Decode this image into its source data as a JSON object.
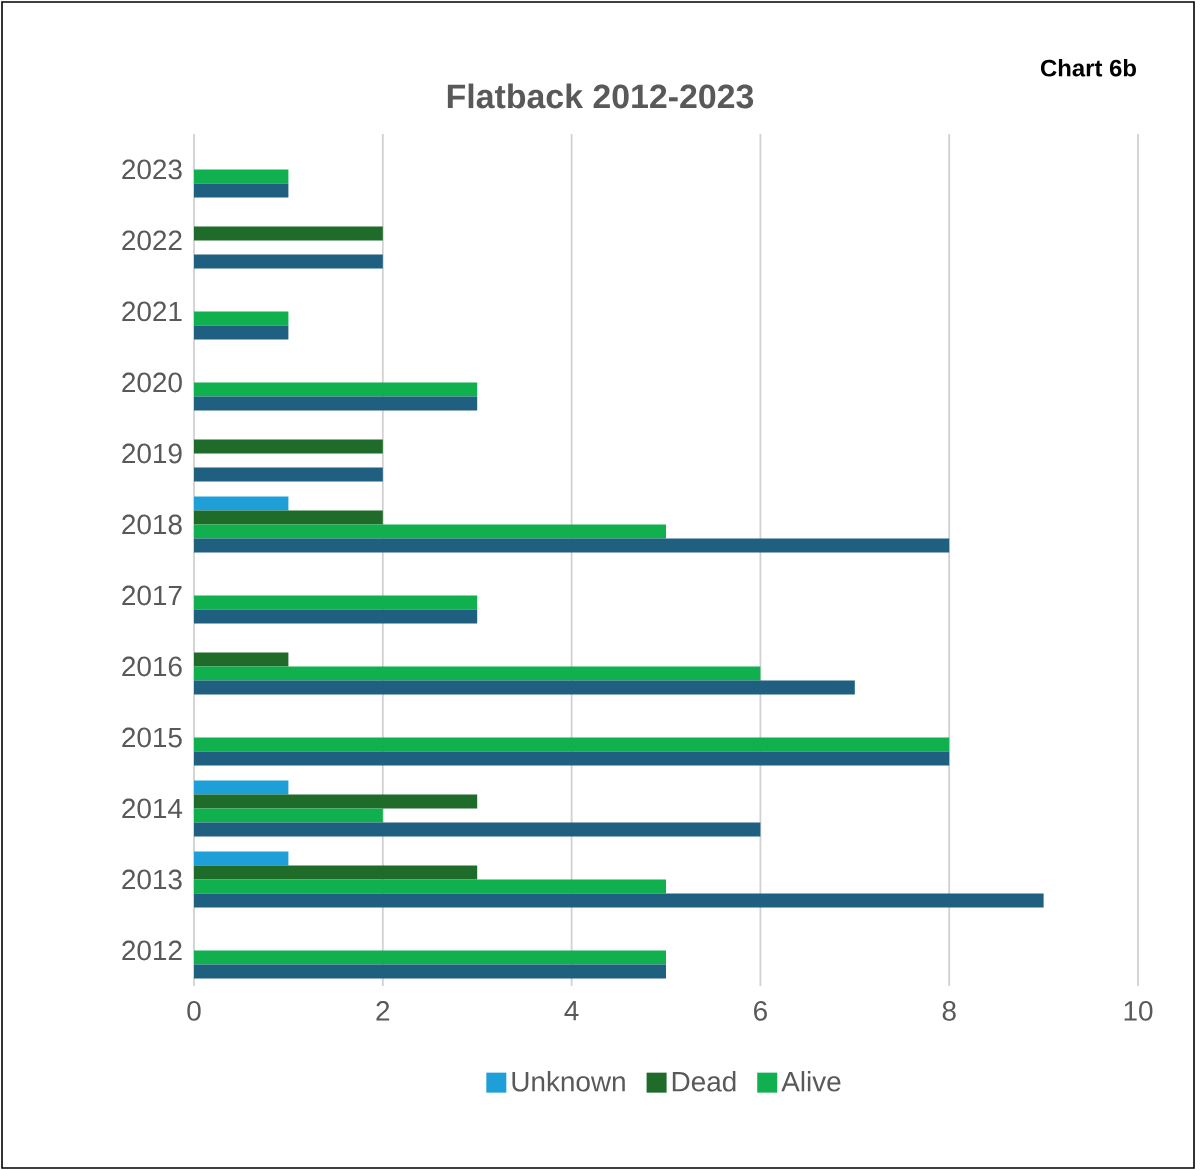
{
  "chart_data": {
    "type": "bar",
    "orientation": "horizontal",
    "title": "Flatback 2012-2023",
    "annotations": [
      "Chart 6b"
    ],
    "categories": [
      "2023",
      "2022",
      "2021",
      "2020",
      "2019",
      "2018",
      "2017",
      "2016",
      "2015",
      "2014",
      "2013",
      "2012"
    ],
    "series": [
      {
        "name": "Unknown",
        "color": "#1f9fd8",
        "values": [
          null,
          null,
          null,
          null,
          null,
          1,
          null,
          null,
          null,
          1,
          1,
          null
        ]
      },
      {
        "name": "Dead",
        "color": "#1e6b2a",
        "values": [
          null,
          2,
          null,
          null,
          2,
          2,
          null,
          1,
          null,
          3,
          3,
          null
        ]
      },
      {
        "name": "Alive",
        "color": "#11b04f",
        "values": [
          1,
          null,
          1,
          3,
          null,
          5,
          3,
          6,
          8,
          2,
          5,
          5
        ]
      },
      {
        "color": "#1f5f80",
        "values": [
          1,
          2,
          1,
          3,
          2,
          8,
          3,
          7,
          8,
          6,
          9,
          5
        ]
      }
    ],
    "xlim": [
      0,
      10
    ],
    "xticks": [
      0,
      2,
      4,
      6,
      8,
      10
    ],
    "grid": "x",
    "legend": "bottom"
  }
}
